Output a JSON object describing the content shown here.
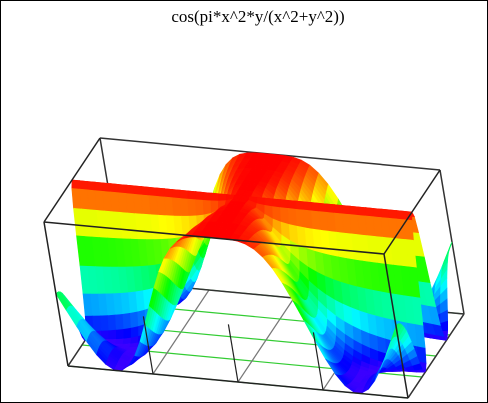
{
  "chart_data": {
    "type": "surface",
    "title": "cos(pi*x^2*y/(x^2+y^2))"
  }
}
